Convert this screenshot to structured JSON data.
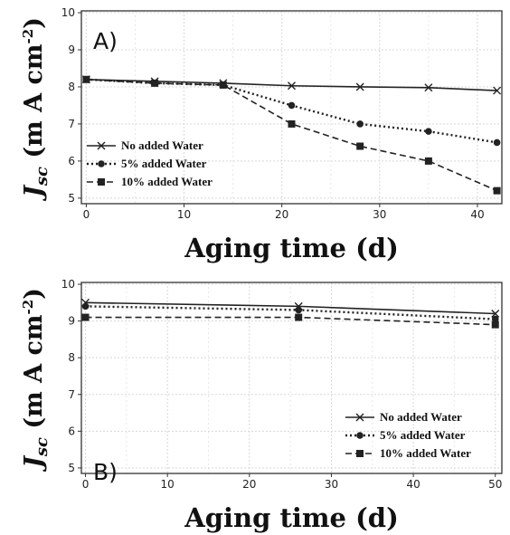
{
  "chart_data": [
    {
      "type": "line",
      "panel_label": "A)",
      "xlabel": "Aging time (d)",
      "ylabel_main": "J",
      "ylabel_sub": "sc",
      "ylabel_unit_a": " (m A cm",
      "ylabel_unit_sup": "-2",
      "ylabel_unit_b": ")",
      "xlim": [
        -0.5,
        42.5
      ],
      "ylim": [
        4.85,
        10.05
      ],
      "xticks": [
        "0",
        "10",
        "20",
        "30",
        "40"
      ],
      "yticks": [
        "5",
        "6",
        "7",
        "8",
        "9",
        "10"
      ],
      "grid": true,
      "legend_position": "bottom-left",
      "series": [
        {
          "name": "No added Water",
          "marker": "x",
          "dash": "solid",
          "color": "#222222",
          "x": [
            0,
            7,
            14,
            21,
            28,
            35,
            42
          ],
          "y": [
            8.2,
            8.15,
            8.1,
            8.03,
            8.0,
            7.98,
            7.9
          ]
        },
        {
          "name": "5% added Water",
          "marker": "circle",
          "dash": "dotted",
          "color": "#222222",
          "x": [
            0,
            7,
            14,
            21,
            28,
            35,
            42
          ],
          "y": [
            8.2,
            8.1,
            8.05,
            7.5,
            7.0,
            6.8,
            6.5
          ]
        },
        {
          "name": "10% added Water",
          "marker": "square",
          "dash": "dashed",
          "color": "#222222",
          "x": [
            0,
            7,
            14,
            21,
            28,
            35,
            42
          ],
          "y": [
            8.2,
            8.1,
            8.05,
            7.0,
            6.4,
            6.0,
            5.2
          ]
        }
      ]
    },
    {
      "type": "line",
      "panel_label": "B)",
      "xlabel": "Aging time (d)",
      "ylabel_main": "J",
      "ylabel_sub": "sc",
      "ylabel_unit_a": " (m A cm",
      "ylabel_unit_sup": "-2",
      "ylabel_unit_b": ")",
      "xlim": [
        -0.5,
        50.8
      ],
      "ylim": [
        4.85,
        10.05
      ],
      "xticks": [
        "0",
        "10",
        "20",
        "30",
        "40",
        "50"
      ],
      "yticks": [
        "5",
        "6",
        "7",
        "8",
        "9",
        "10"
      ],
      "grid": true,
      "legend_position": "bottom-right",
      "series": [
        {
          "name": "No added Water",
          "marker": "x",
          "dash": "solid",
          "color": "#222222",
          "x": [
            0,
            26,
            50
          ],
          "y": [
            9.5,
            9.4,
            9.2
          ]
        },
        {
          "name": "5% added Water",
          "marker": "circle",
          "dash": "dotted",
          "color": "#222222",
          "x": [
            0,
            26,
            50
          ],
          "y": [
            9.4,
            9.3,
            9.05
          ]
        },
        {
          "name": "10% added Water",
          "marker": "square",
          "dash": "dashed",
          "color": "#222222",
          "x": [
            0,
            26,
            50
          ],
          "y": [
            9.1,
            9.1,
            8.9
          ]
        }
      ]
    }
  ]
}
